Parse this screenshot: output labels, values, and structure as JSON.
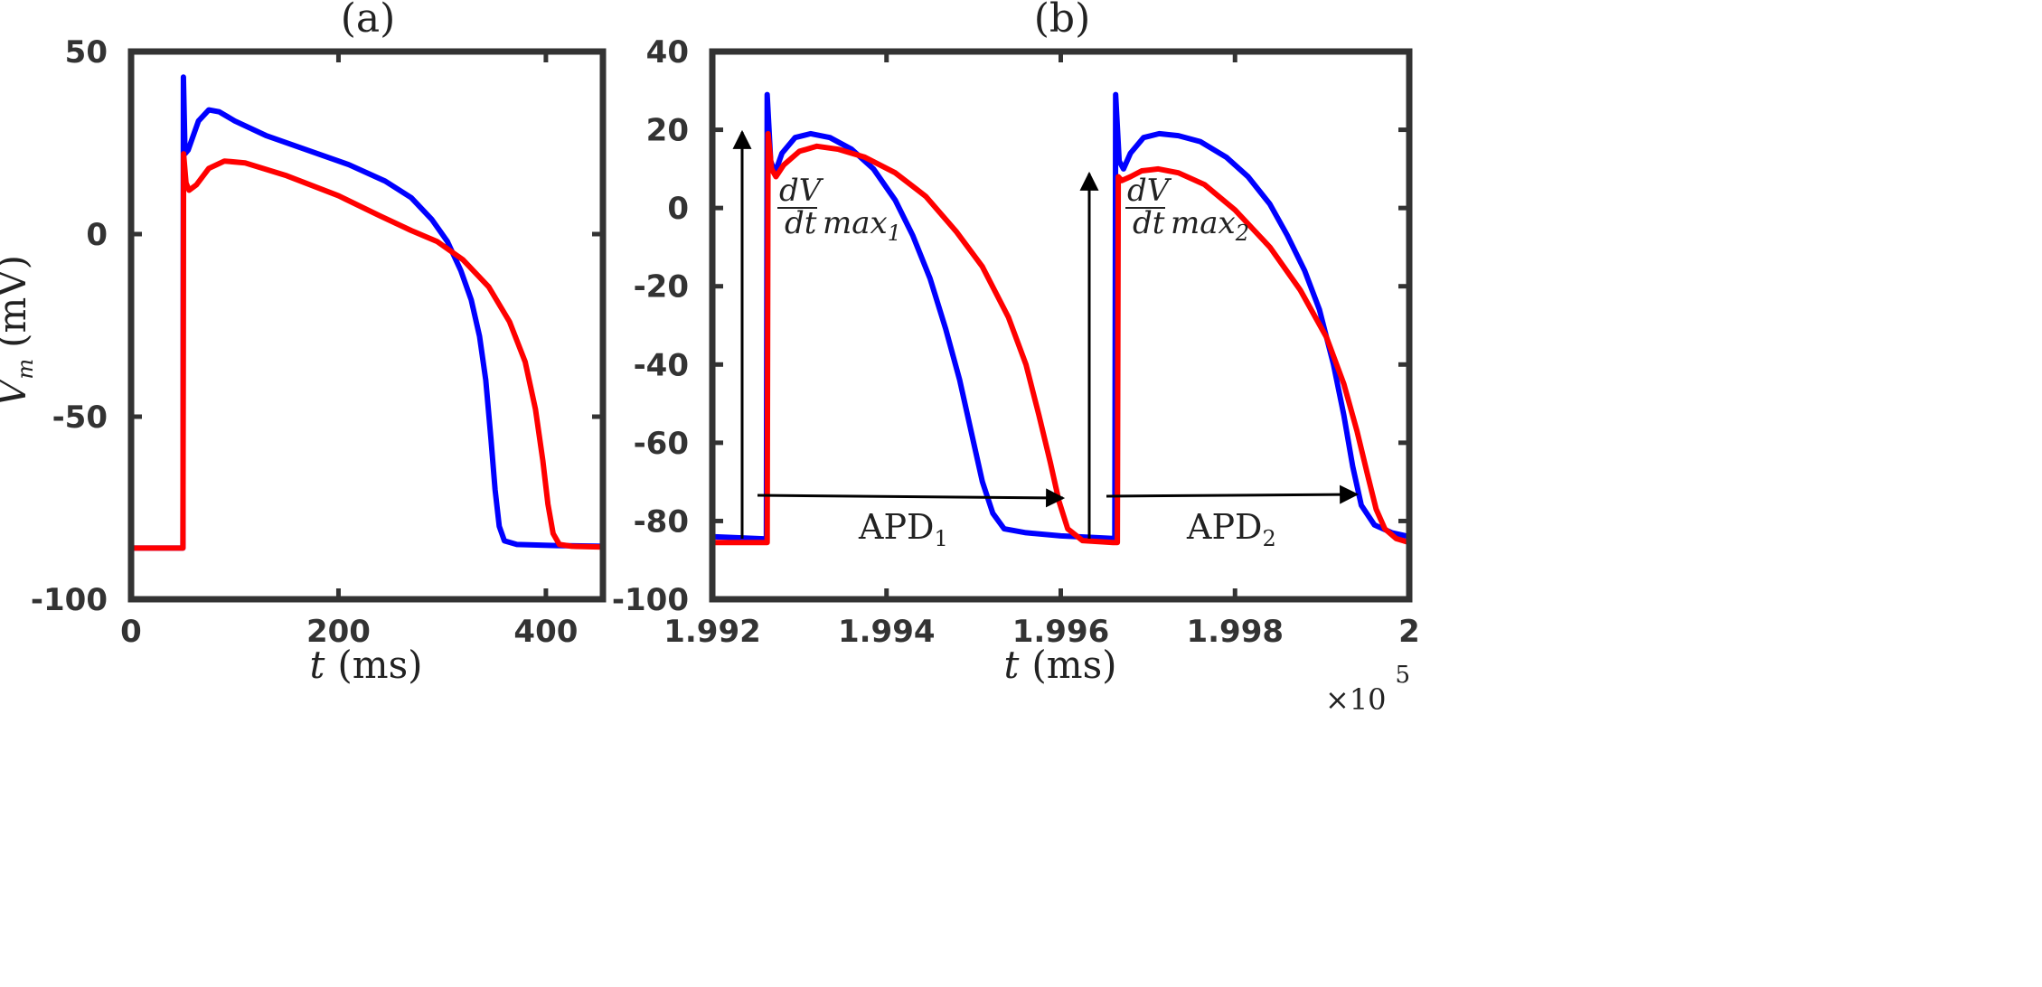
{
  "chart_data": [
    {
      "id": "a",
      "type": "line",
      "title": "(a)",
      "xlabel": {
        "var": "t",
        "unit": "(ms)"
      },
      "ylabel": {
        "var": "V",
        "sub": "m",
        "unit": "(mV)"
      },
      "xlim": [
        0,
        455
      ],
      "ylim": [
        -100,
        50
      ],
      "xticks": [
        0,
        200,
        400
      ],
      "xtick_labels": [
        "0",
        "200",
        "400"
      ],
      "yticks": [
        50,
        0,
        -50,
        -100
      ],
      "ytick_labels": [
        "50",
        "0",
        "-50",
        "-100"
      ],
      "series": [
        {
          "name": "blue",
          "color": "#0000ff",
          "points": [
            [
              0,
              -86
            ],
            [
              50,
              -86
            ],
            [
              50.5,
              43
            ],
            [
              52,
              22
            ],
            [
              55,
              23
            ],
            [
              65,
              31
            ],
            [
              75,
              34
            ],
            [
              85,
              33.5
            ],
            [
              100,
              31
            ],
            [
              130,
              27
            ],
            [
              170,
              23
            ],
            [
              210,
              19
            ],
            [
              245,
              14.5
            ],
            [
              270,
              10
            ],
            [
              290,
              4
            ],
            [
              305,
              -2
            ],
            [
              318,
              -10
            ],
            [
              328,
              -18
            ],
            [
              336,
              -28
            ],
            [
              342,
              -40
            ],
            [
              347,
              -56
            ],
            [
              351,
              -70
            ],
            [
              355,
              -80
            ],
            [
              360,
              -84
            ],
            [
              372,
              -85
            ],
            [
              410,
              -85.3
            ],
            [
              455,
              -85.5
            ]
          ]
        },
        {
          "name": "red",
          "color": "#ff0000",
          "points": [
            [
              0,
              -86
            ],
            [
              50,
              -86
            ],
            [
              50.6,
              22
            ],
            [
              53,
              14
            ],
            [
              56,
              12
            ],
            [
              63,
              13.5
            ],
            [
              75,
              18
            ],
            [
              90,
              20
            ],
            [
              110,
              19.5
            ],
            [
              150,
              16
            ],
            [
              200,
              10.5
            ],
            [
              240,
              5
            ],
            [
              270,
              1
            ],
            [
              295,
              -2
            ],
            [
              320,
              -7
            ],
            [
              345,
              -14.5
            ],
            [
              365,
              -24
            ],
            [
              380,
              -35
            ],
            [
              390,
              -48
            ],
            [
              397,
              -62
            ],
            [
              402,
              -74
            ],
            [
              407,
              -82
            ],
            [
              413,
              -85
            ],
            [
              425,
              -85.5
            ],
            [
              455,
              -85.7
            ]
          ]
        }
      ]
    },
    {
      "id": "b",
      "type": "line",
      "title": "(b)",
      "xlabel": {
        "var": "t",
        "unit": "(ms)"
      },
      "x_multiplier": "×10",
      "x_multiplier_exp": "5",
      "xlim": [
        1.992,
        2.0
      ],
      "ylim": [
        -100,
        40
      ],
      "xticks": [
        1.992,
        1.994,
        1.996,
        1.998,
        2.0
      ],
      "xtick_labels": [
        "1.992",
        "1.994",
        "1.996",
        "1.998",
        "2"
      ],
      "yticks": [
        40,
        20,
        0,
        -20,
        -40,
        -60,
        -80,
        -100
      ],
      "ytick_labels": [
        "40",
        "20",
        "0",
        "-20",
        "-40",
        "-60",
        "-80",
        "-100"
      ],
      "series": [
        {
          "name": "blue",
          "color": "#0000ff",
          "points": [
            [
              1.992,
              -84
            ],
            [
              1.99262,
              -84.6
            ],
            [
              1.99263,
              29
            ],
            [
              1.99267,
              12
            ],
            [
              1.99272,
              9
            ],
            [
              1.9928,
              14
            ],
            [
              1.99295,
              18
            ],
            [
              1.99313,
              19
            ],
            [
              1.99335,
              18
            ],
            [
              1.9936,
              15
            ],
            [
              1.99385,
              10
            ],
            [
              1.9941,
              2
            ],
            [
              1.9943,
              -7
            ],
            [
              1.9945,
              -18
            ],
            [
              1.99468,
              -31
            ],
            [
              1.99484,
              -44
            ],
            [
              1.99498,
              -58
            ],
            [
              1.9951,
              -70
            ],
            [
              1.99522,
              -78
            ],
            [
              1.99535,
              -82
            ],
            [
              1.9956,
              -83
            ],
            [
              1.996,
              -83.8
            ],
            [
              1.99655,
              -84.4
            ],
            [
              1.99662,
              -84.5
            ],
            [
              1.99663,
              29
            ],
            [
              1.99667,
              12
            ],
            [
              1.99672,
              10
            ],
            [
              1.9968,
              14
            ],
            [
              1.99695,
              18
            ],
            [
              1.99713,
              19
            ],
            [
              1.99735,
              18.5
            ],
            [
              1.9976,
              17
            ],
            [
              1.9979,
              13
            ],
            [
              1.99815,
              8
            ],
            [
              1.9984,
              1
            ],
            [
              1.9986,
              -7
            ],
            [
              1.9988,
              -16
            ],
            [
              1.99897,
              -26
            ],
            [
              1.99913,
              -40
            ],
            [
              1.99925,
              -53
            ],
            [
              1.99935,
              -66
            ],
            [
              1.99945,
              -76
            ],
            [
              1.9996,
              -81
            ],
            [
              1.9998,
              -83
            ],
            [
              2.0,
              -84
            ]
          ]
        },
        {
          "name": "red",
          "color": "#ff0000",
          "points": [
            [
              1.992,
              -85.5
            ],
            [
              1.99263,
              -85.5
            ],
            [
              1.99264,
              19
            ],
            [
              1.99268,
              10
            ],
            [
              1.99273,
              8
            ],
            [
              1.99282,
              11
            ],
            [
              1.993,
              14.5
            ],
            [
              1.9932,
              15.8
            ],
            [
              1.99345,
              15
            ],
            [
              1.99375,
              13
            ],
            [
              1.9941,
              9
            ],
            [
              1.99445,
              3
            ],
            [
              1.9948,
              -6
            ],
            [
              1.9951,
              -15
            ],
            [
              1.9954,
              -28
            ],
            [
              1.9956,
              -40
            ],
            [
              1.99575,
              -53
            ],
            [
              1.99588,
              -65
            ],
            [
              1.99598,
              -75
            ],
            [
              1.99608,
              -82
            ],
            [
              1.99625,
              -85
            ],
            [
              1.9966,
              -85.5
            ],
            [
              1.99665,
              -85.5
            ],
            [
              1.99666,
              8
            ],
            [
              1.9967,
              7
            ],
            [
              1.9968,
              8
            ],
            [
              1.99693,
              9.5
            ],
            [
              1.99712,
              10
            ],
            [
              1.99735,
              9
            ],
            [
              1.99765,
              6
            ],
            [
              1.998,
              -0.5
            ],
            [
              1.9984,
              -10
            ],
            [
              1.99875,
              -21
            ],
            [
              1.99905,
              -33
            ],
            [
              1.99925,
              -45
            ],
            [
              1.9994,
              -57
            ],
            [
              1.99952,
              -68
            ],
            [
              1.99962,
              -77
            ],
            [
              1.99972,
              -82
            ],
            [
              1.99985,
              -84.5
            ],
            [
              2.0,
              -85.5
            ]
          ]
        }
      ],
      "annotations": {
        "dvdt1": {
          "num": "dV",
          "den": "dt",
          "label": "max",
          "sub": "1"
        },
        "dvdt2": {
          "num": "dV",
          "den": "dt",
          "label": "max",
          "sub": "2"
        },
        "apd1": {
          "label": "APD",
          "sub": "1"
        },
        "apd2": {
          "label": "APD",
          "sub": "2"
        }
      }
    }
  ]
}
